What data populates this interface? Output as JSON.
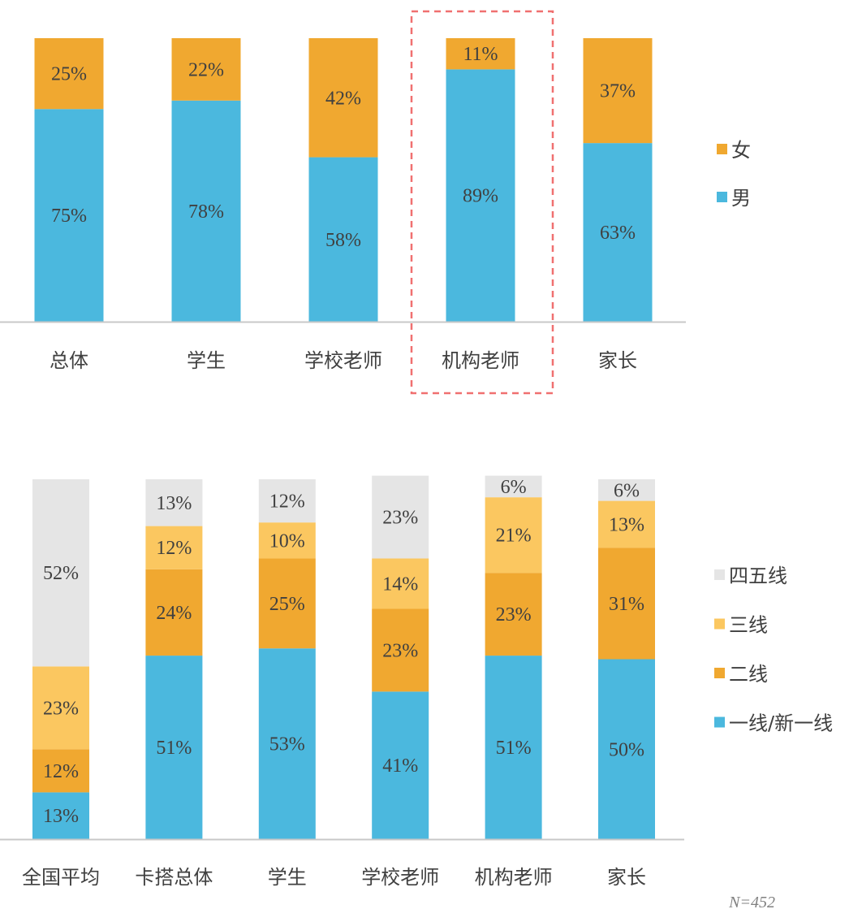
{
  "colors": {
    "male": "#4BB8DE",
    "female": "#F0A830",
    "tier1": "#4BB8DE",
    "tier2": "#F0A830",
    "tier3": "#FBC760",
    "tier45": "#E5E5E5",
    "highlight": "#F07070",
    "axis": "#C8C8C8"
  },
  "note": "N=452",
  "chart_data": [
    {
      "type": "bar",
      "stacked": true,
      "categories": [
        "总体",
        "学生",
        "学校老师",
        "机构老师",
        "家长"
      ],
      "highlight_category": "机构老师",
      "series": [
        {
          "name": "男",
          "color": "#4BB8DE",
          "values": [
            75,
            78,
            58,
            89,
            63
          ],
          "labels": [
            "75%",
            "78%",
            "58%",
            "89%",
            "63%"
          ]
        },
        {
          "name": "女",
          "color": "#F0A830",
          "values": [
            25,
            22,
            42,
            11,
            37
          ],
          "labels": [
            "25%",
            "22%",
            "42%",
            "11%",
            "37%"
          ]
        }
      ],
      "legend_order": [
        "女",
        "男"
      ],
      "legend_position": "right",
      "ylim": [
        0,
        100
      ]
    },
    {
      "type": "bar",
      "stacked": true,
      "categories": [
        "全国平均",
        "卡搭总体",
        "学生",
        "学校老师",
        "机构老师",
        "家长"
      ],
      "series": [
        {
          "name": "一线/新一线",
          "color": "#4BB8DE",
          "values": [
            13,
            51,
            53,
            41,
            51,
            50
          ],
          "labels": [
            "13%",
            "51%",
            "53%",
            "41%",
            "51%",
            "50%"
          ]
        },
        {
          "name": "二线",
          "color": "#F0A830",
          "values": [
            12,
            24,
            25,
            23,
            23,
            31
          ],
          "labels": [
            "12%",
            "24%",
            "25%",
            "23%",
            "23%",
            "31%"
          ]
        },
        {
          "name": "三线",
          "color": "#FBC760",
          "values": [
            23,
            12,
            10,
            14,
            21,
            13
          ],
          "labels": [
            "23%",
            "12%",
            "10%",
            "14%",
            "21%",
            "13%"
          ]
        },
        {
          "name": "四五线",
          "color": "#E5E5E5",
          "values": [
            52,
            13,
            12,
            23,
            6,
            6
          ],
          "labels": [
            "52%",
            "13%",
            "12%",
            "23%",
            "6%",
            "6%"
          ]
        }
      ],
      "legend_order": [
        "四五线",
        "三线",
        "二线",
        "一线/新一线"
      ],
      "legend_position": "right",
      "ylim": [
        0,
        100
      ]
    }
  ]
}
